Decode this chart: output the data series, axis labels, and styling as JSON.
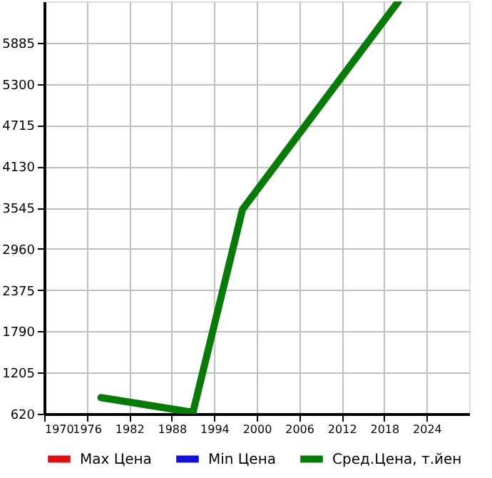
{
  "chart_data": {
    "type": "line",
    "x": [
      1978,
      1991,
      1998,
      2020
    ],
    "series": [
      {
        "name": "Max Цена",
        "color": "#dd1111",
        "values": [
          null,
          null,
          null,
          null
        ]
      },
      {
        "name": "Min Цена",
        "color": "#1111dd",
        "values": [
          null,
          null,
          null,
          null
        ]
      },
      {
        "name": "Сред.Цена, т.йен",
        "color": "#087a08",
        "values": [
          850,
          640,
          3520,
          6470
        ]
      }
    ],
    "xlim": [
      1970,
      2030
    ],
    "xticks": [
      1970,
      1976,
      1982,
      1988,
      1994,
      2000,
      2006,
      2012,
      2018,
      2024
    ],
    "ylim": [
      620,
      6470
    ],
    "yticks": [
      620,
      1205,
      1790,
      2375,
      2960,
      3545,
      4130,
      4715,
      5300,
      5885
    ],
    "grid": true,
    "legend": "bottom",
    "marker": "none",
    "line_style": "solid"
  }
}
